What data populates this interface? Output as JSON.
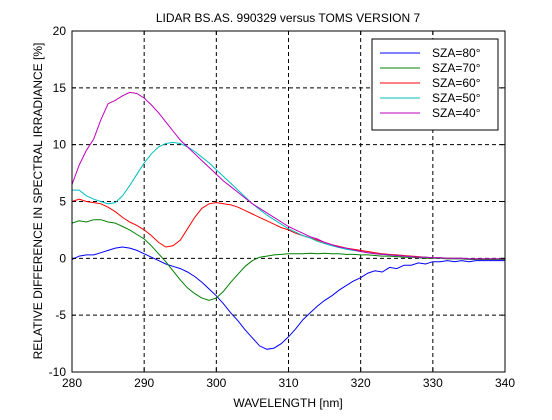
{
  "chart_data": {
    "type": "line",
    "title": "LIDAR BS.AS. 990329 versus TOMS VERSION 7",
    "xlabel": "WAVELENGTH [nm]",
    "ylabel": "RELATIVE DIFFERENCE IN SPECTRAL IRRADIANCE [%]",
    "xlim": [
      280,
      340
    ],
    "ylim": [
      -10,
      20
    ],
    "x_ticks": [
      280,
      290,
      300,
      310,
      320,
      330,
      340
    ],
    "y_ticks": [
      -10,
      -5,
      0,
      5,
      10,
      15,
      20
    ],
    "x_tick_labels": [
      "280",
      "290",
      "300",
      "310",
      "320",
      "330",
      "340"
    ],
    "y_tick_labels": [
      "-10",
      "-5",
      "0",
      "5",
      "10",
      "15",
      "20"
    ],
    "grid": true,
    "legend_position": "top-right",
    "series": [
      {
        "name": "SZA=80°",
        "color": "#0000ff",
        "x": [
          280,
          281,
          282,
          283,
          284,
          285,
          286,
          287,
          288,
          289,
          290,
          291,
          292,
          293,
          294,
          295,
          296,
          297,
          298,
          299,
          300,
          301,
          302,
          303,
          304,
          305,
          306,
          307,
          308,
          309,
          310,
          311,
          312,
          313,
          314,
          315,
          316,
          317,
          318,
          319,
          320,
          321,
          322,
          323,
          324,
          325,
          326,
          327,
          328,
          329,
          330,
          331,
          332,
          333,
          334,
          335,
          336,
          337,
          338,
          339,
          340
        ],
        "y": [
          -0.1,
          0.2,
          0.3,
          0.3,
          0.5,
          0.7,
          0.9,
          1.0,
          0.9,
          0.7,
          0.4,
          0.1,
          -0.2,
          -0.5,
          -0.7,
          -0.9,
          -1.2,
          -1.6,
          -2.1,
          -2.7,
          -3.3,
          -4.0,
          -4.8,
          -5.5,
          -6.3,
          -7.0,
          -7.7,
          -8.0,
          -7.9,
          -7.5,
          -6.9,
          -6.2,
          -5.4,
          -4.8,
          -4.2,
          -3.7,
          -3.3,
          -2.8,
          -2.4,
          -2.0,
          -1.7,
          -1.3,
          -1.1,
          -1.2,
          -0.8,
          -0.9,
          -0.6,
          -0.6,
          -0.4,
          -0.5,
          -0.3,
          -0.3,
          -0.2,
          -0.3,
          -0.2,
          -0.3,
          -0.2,
          -0.2,
          -0.2,
          -0.2,
          -0.2
        ]
      },
      {
        "name": "SZA=70°",
        "color": "#008000",
        "x": [
          280,
          281,
          282,
          283,
          284,
          285,
          286,
          287,
          288,
          289,
          290,
          291,
          292,
          293,
          294,
          295,
          296,
          297,
          298,
          299,
          300,
          301,
          302,
          303,
          304,
          305,
          306,
          307,
          308,
          309,
          310,
          311,
          312,
          313,
          314,
          315,
          316,
          317,
          318,
          319,
          320,
          321,
          322,
          323,
          324,
          325,
          326,
          327,
          328,
          329,
          330,
          331,
          332,
          333,
          334,
          335,
          336,
          337,
          338,
          339,
          340
        ],
        "y": [
          3.1,
          3.3,
          3.2,
          3.4,
          3.4,
          3.2,
          3.1,
          2.8,
          2.5,
          2.1,
          1.7,
          1.1,
          0.4,
          -0.3,
          -1.1,
          -1.9,
          -2.6,
          -3.1,
          -3.5,
          -3.7,
          -3.5,
          -2.9,
          -2.1,
          -1.4,
          -0.7,
          -0.2,
          0.1,
          0.2,
          0.3,
          0.35,
          0.4,
          0.4,
          0.4,
          0.45,
          0.4,
          0.45,
          0.4,
          0.4,
          0.35,
          0.35,
          0.3,
          0.3,
          0.25,
          0.2,
          0.2,
          0.15,
          0.1,
          0.1,
          0.05,
          0.0,
          0.0,
          0.0,
          -0.05,
          -0.05,
          -0.05,
          -0.1,
          -0.1,
          -0.1,
          -0.1,
          -0.1,
          -0.1
        ]
      },
      {
        "name": "SZA=60°",
        "color": "#ff0000",
        "x": [
          280,
          281,
          282,
          283,
          284,
          285,
          286,
          287,
          288,
          289,
          290,
          291,
          292,
          293,
          294,
          295,
          296,
          297,
          298,
          299,
          300,
          301,
          302,
          303,
          304,
          305,
          306,
          307,
          308,
          309,
          310,
          311,
          312,
          313,
          314,
          315,
          316,
          317,
          318,
          319,
          320,
          321,
          322,
          323,
          324,
          325,
          326,
          327,
          328,
          329,
          330,
          331,
          332,
          333,
          334,
          335,
          336,
          337,
          338,
          339,
          340
        ],
        "y": [
          5.0,
          5.2,
          5.0,
          4.9,
          4.8,
          4.5,
          4.1,
          3.6,
          3.2,
          2.9,
          2.5,
          2.0,
          1.4,
          1.0,
          1.1,
          1.6,
          2.6,
          3.6,
          4.4,
          4.8,
          4.9,
          4.8,
          4.7,
          4.5,
          4.2,
          3.9,
          3.6,
          3.3,
          3.0,
          2.7,
          2.5,
          2.2,
          2.0,
          1.8,
          1.6,
          1.4,
          1.2,
          1.05,
          0.9,
          0.8,
          0.7,
          0.6,
          0.5,
          0.4,
          0.35,
          0.3,
          0.25,
          0.2,
          0.15,
          0.1,
          0.05,
          0.05,
          0.0,
          0.0,
          0.0,
          -0.05,
          -0.05,
          -0.05,
          -0.05,
          -0.05,
          -0.05
        ]
      },
      {
        "name": "SZA=50°",
        "color": "#00bfbf",
        "x": [
          280,
          281,
          282,
          283,
          284,
          285,
          286,
          287,
          288,
          289,
          290,
          291,
          292,
          293,
          294,
          295,
          296,
          297,
          298,
          299,
          300,
          301,
          302,
          303,
          304,
          305,
          306,
          307,
          308,
          309,
          310,
          311,
          312,
          313,
          314,
          315,
          316,
          317,
          318,
          319,
          320,
          321,
          322,
          323,
          324,
          325,
          326,
          327,
          328,
          329,
          330,
          331,
          332,
          333,
          334,
          335,
          336,
          337,
          338,
          339,
          340
        ],
        "y": [
          6.0,
          6.0,
          5.5,
          5.2,
          5.0,
          4.8,
          4.9,
          5.5,
          6.4,
          7.4,
          8.4,
          9.2,
          9.8,
          10.1,
          10.2,
          10.1,
          9.8,
          9.4,
          8.9,
          8.4,
          7.8,
          7.2,
          6.6,
          6.0,
          5.4,
          4.8,
          4.3,
          3.8,
          3.4,
          3.0,
          2.6,
          2.3,
          2.0,
          1.8,
          1.5,
          1.3,
          1.1,
          0.95,
          0.8,
          0.7,
          0.6,
          0.5,
          0.4,
          0.35,
          0.3,
          0.25,
          0.2,
          0.15,
          0.1,
          0.1,
          0.05,
          0.05,
          0.0,
          0.0,
          0.0,
          -0.05,
          -0.05,
          -0.05,
          -0.05,
          -0.05,
          -0.05
        ]
      },
      {
        "name": "SZA=40°",
        "color": "#bf00bf",
        "x": [
          280,
          281,
          282,
          283,
          284,
          285,
          286,
          287,
          288,
          289,
          290,
          291,
          292,
          293,
          294,
          295,
          296,
          297,
          298,
          299,
          300,
          301,
          302,
          303,
          304,
          305,
          306,
          307,
          308,
          309,
          310,
          311,
          312,
          313,
          314,
          315,
          316,
          317,
          318,
          319,
          320,
          321,
          322,
          323,
          324,
          325,
          326,
          327,
          328,
          329,
          330,
          331,
          332,
          333,
          334,
          335,
          336,
          337,
          338,
          339,
          340
        ],
        "y": [
          6.5,
          8.2,
          9.5,
          10.5,
          12.2,
          13.6,
          13.9,
          14.3,
          14.6,
          14.5,
          14.1,
          13.5,
          12.8,
          12.0,
          11.2,
          10.4,
          9.8,
          9.2,
          8.6,
          8.0,
          7.4,
          6.8,
          6.3,
          5.8,
          5.3,
          4.8,
          4.4,
          4.0,
          3.6,
          3.2,
          2.8,
          2.5,
          2.2,
          1.9,
          1.7,
          1.4,
          1.2,
          1.0,
          0.9,
          0.75,
          0.6,
          0.5,
          0.4,
          0.35,
          0.3,
          0.25,
          0.2,
          0.15,
          0.1,
          0.1,
          0.05,
          0.05,
          0.0,
          0.0,
          0.0,
          -0.05,
          -0.05,
          -0.05,
          -0.05,
          -0.05,
          -0.05
        ]
      }
    ]
  }
}
